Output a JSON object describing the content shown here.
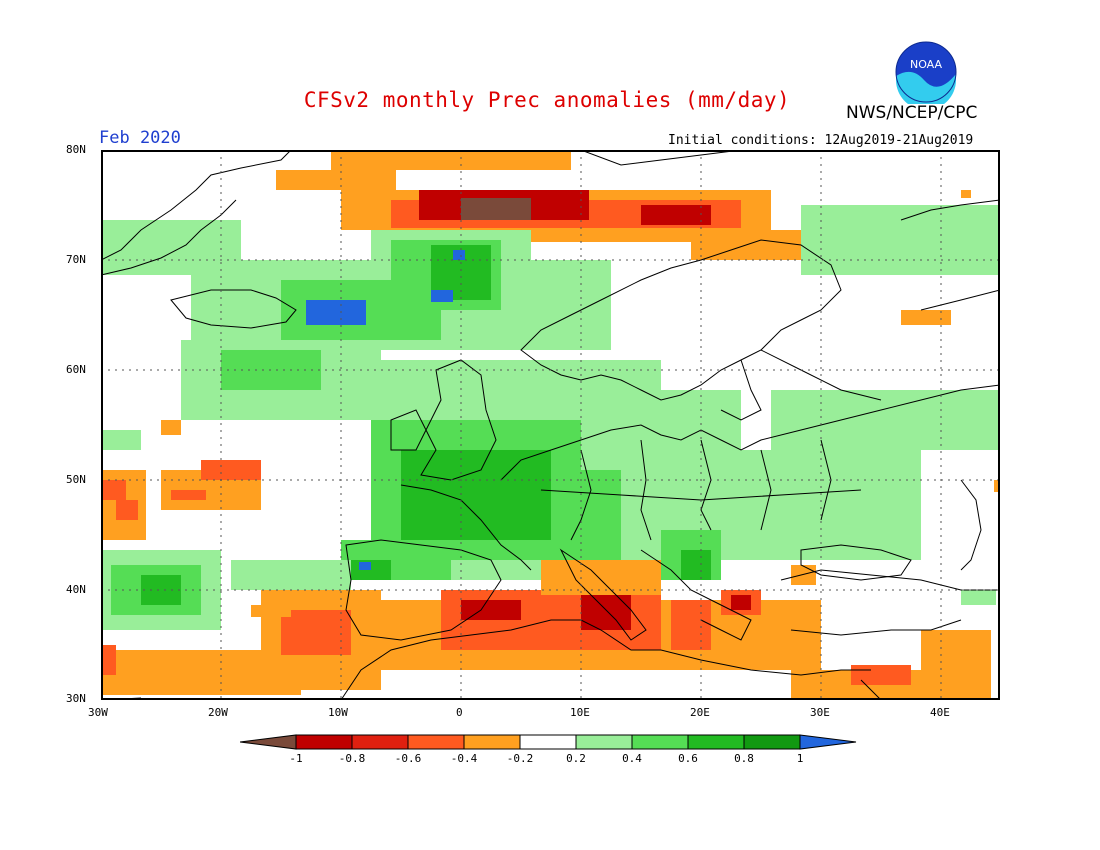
{
  "title": "CFSv2 monthly Prec anomalies (mm/day)",
  "agency": "NWS/NCEP/CPC",
  "logo_text": "NOAA",
  "month": "Feb 2020",
  "initial_conditions": "Initial conditions: 12Aug2019-21Aug2019",
  "lat_ticks": [
    "80N",
    "70N",
    "60N",
    "50N",
    "40N",
    "30N"
  ],
  "lon_ticks": [
    "30W",
    "20W",
    "10W",
    "0",
    "10E",
    "20E",
    "30E",
    "40E"
  ],
  "colorbar": {
    "labels": [
      "-1",
      "-0.8",
      "-0.6",
      "-0.4",
      "-0.2",
      "0.2",
      "0.4",
      "0.6",
      "0.8",
      "1"
    ],
    "colors": [
      "#7a4a3a",
      "#c00000",
      "#e02010",
      "#ff5a20",
      "#ffa020",
      "#ffffff",
      "#99ee99",
      "#55dd55",
      "#22bb22",
      "#119911",
      "#2266dd"
    ]
  }
}
